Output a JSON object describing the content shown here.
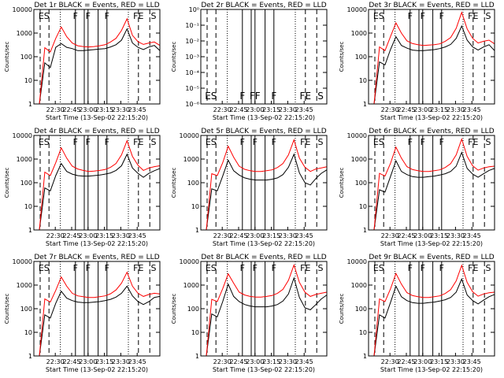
{
  "page": {
    "background": "#ffffff",
    "axis_color": "#000000"
  },
  "common": {
    "ylabel": "Counts/sec",
    "xlabel": "Start Time (13-Sep-02 22:15:20)",
    "xticks": [
      "22:30",
      "22:45",
      "23:00",
      "23:15",
      "23:30",
      "23:45"
    ],
    "event_color": "#000000",
    "lld_color": "#ff0000"
  },
  "chart_data": [
    {
      "type": "line",
      "title": "Det 1r BLACK = Events, RED = LLD",
      "ylim_log": [
        1,
        10000
      ],
      "yticks": [
        "1",
        "10",
        "100",
        "1000",
        "10000"
      ],
      "markers": [
        "ES",
        "F",
        "F",
        "F",
        "FE",
        "S"
      ],
      "empty": false,
      "series": [
        {
          "name": "Events",
          "values": [
            0,
            0,
            55,
            35,
            250,
            360,
            250,
            220,
            180,
            180,
            190,
            200,
            210,
            220,
            260,
            320,
            500,
            1500,
            380,
            250,
            200,
            260,
            300,
            180
          ]
        },
        {
          "name": "LLD",
          "values": [
            0,
            0,
            240,
            160,
            600,
            1800,
            700,
            380,
            290,
            270,
            260,
            270,
            290,
            320,
            420,
            600,
            1300,
            4000,
            800,
            430,
            330,
            380,
            420,
            300
          ]
        }
      ]
    },
    {
      "type": "line",
      "title": "Det 2r BLACK = Events, RED = LLD",
      "ylim_log": [
        1e-06,
        1
      ],
      "yticks": [
        "10⁻⁶",
        "10⁻⁵",
        "10⁻⁴",
        "10⁻³",
        "10⁻²",
        "10⁻¹",
        "10⁰"
      ],
      "markers": [
        "ES",
        "F",
        "FF",
        "F",
        "FE",
        "S"
      ],
      "empty": true,
      "series": []
    },
    {
      "type": "line",
      "title": "Det 3r BLACK = Events, RED = LLD",
      "ylim_log": [
        1,
        10000
      ],
      "yticks": [
        "1",
        "10",
        "100",
        "1000",
        "10000"
      ],
      "markers": [
        "ES",
        "F",
        "F",
        "F",
        "FE",
        "S"
      ],
      "empty": false,
      "series": [
        {
          "name": "Events",
          "values": [
            0,
            0,
            60,
            45,
            200,
            700,
            300,
            230,
            190,
            180,
            180,
            190,
            200,
            220,
            260,
            330,
            600,
            2000,
            500,
            260,
            190,
            260,
            320,
            180
          ]
        },
        {
          "name": "LLD",
          "values": [
            0,
            0,
            260,
            180,
            700,
            2700,
            1000,
            470,
            360,
            320,
            300,
            310,
            320,
            350,
            450,
            650,
            1600,
            7500,
            1500,
            600,
            380,
            450,
            500,
            350
          ]
        }
      ]
    },
    {
      "type": "line",
      "title": "Det 4r BLACK = Events, RED = LLD",
      "ylim_log": [
        1,
        10000
      ],
      "yticks": [
        "1",
        "10",
        "100",
        "1000",
        "10000"
      ],
      "markers": [
        "ES",
        "F",
        "F",
        "F",
        "FE",
        "S"
      ],
      "empty": false,
      "series": [
        {
          "name": "Events",
          "values": [
            0,
            0,
            60,
            45,
            200,
            650,
            300,
            230,
            200,
            190,
            190,
            200,
            210,
            230,
            260,
            330,
            520,
            1600,
            420,
            250,
            170,
            250,
            320,
            400
          ]
        },
        {
          "name": "LLD",
          "values": [
            0,
            0,
            280,
            200,
            700,
            3000,
            1100,
            500,
            380,
            330,
            300,
            310,
            330,
            360,
            450,
            650,
            1500,
            6000,
            1300,
            550,
            330,
            420,
            480,
            520
          ]
        }
      ]
    },
    {
      "type": "line",
      "title": "Det 5r BLACK = Events, RED = LLD",
      "ylim_log": [
        1,
        10000
      ],
      "yticks": [
        "1",
        "10",
        "100",
        "1000",
        "10000"
      ],
      "markers": [
        "ES",
        "F",
        "F",
        "F",
        "FE",
        "S"
      ],
      "empty": false,
      "series": [
        {
          "name": "Events",
          "values": [
            0,
            0,
            55,
            45,
            190,
            900,
            320,
            210,
            160,
            140,
            130,
            130,
            130,
            140,
            160,
            220,
            450,
            1600,
            260,
            100,
            80,
            150,
            250,
            350
          ]
        },
        {
          "name": "LLD",
          "values": [
            0,
            0,
            240,
            200,
            700,
            3500,
            1200,
            500,
            370,
            320,
            300,
            300,
            320,
            350,
            440,
            650,
            1500,
            6500,
            1100,
            450,
            300,
            380,
            420,
            470
          ]
        }
      ]
    },
    {
      "type": "line",
      "title": "Det 6r BLACK = Events, RED = LLD",
      "ylim_log": [
        1,
        10000
      ],
      "yticks": [
        "1",
        "10",
        "100",
        "1000",
        "10000"
      ],
      "markers": [
        "ES",
        "F",
        "F",
        "F",
        "FE",
        "S"
      ],
      "empty": false,
      "series": [
        {
          "name": "Events",
          "values": [
            0,
            0,
            50,
            40,
            180,
            850,
            300,
            220,
            180,
            170,
            170,
            180,
            190,
            210,
            240,
            300,
            500,
            1900,
            400,
            230,
            170,
            240,
            330,
            400
          ]
        },
        {
          "name": "LLD",
          "values": [
            0,
            0,
            250,
            190,
            650,
            3200,
            1100,
            480,
            360,
            320,
            300,
            300,
            320,
            350,
            440,
            640,
            1500,
            7000,
            1300,
            520,
            340,
            420,
            470,
            500
          ]
        }
      ]
    },
    {
      "type": "line",
      "title": "Det 7r BLACK = Events, RED = LLD",
      "ylim_log": [
        1,
        10000
      ],
      "yticks": [
        "1",
        "10",
        "100",
        "1000",
        "10000"
      ],
      "markers": [
        "ES",
        "F",
        "F",
        "F",
        "FE",
        "S"
      ],
      "empty": false,
      "series": [
        {
          "name": "Events",
          "values": [
            0,
            0,
            55,
            40,
            170,
            550,
            280,
            220,
            190,
            180,
            180,
            190,
            200,
            220,
            250,
            310,
            450,
            900,
            350,
            200,
            150,
            200,
            300,
            330
          ]
        },
        {
          "name": "LLD",
          "values": [
            0,
            0,
            260,
            190,
            600,
            2200,
            900,
            450,
            350,
            320,
            300,
            300,
            320,
            350,
            430,
            620,
            1200,
            3500,
            900,
            450,
            330,
            400,
            450,
            420
          ]
        }
      ]
    },
    {
      "type": "line",
      "title": "Det 8r BLACK = Events, RED = LLD",
      "ylim_log": [
        1,
        10000
      ],
      "yticks": [
        "1",
        "10",
        "100",
        "1000",
        "10000"
      ],
      "markers": [
        "ES",
        "F",
        "F",
        "F",
        "FE",
        "S"
      ],
      "empty": false,
      "series": [
        {
          "name": "Events",
          "values": [
            0,
            0,
            60,
            45,
            200,
            1100,
            330,
            200,
            150,
            130,
            120,
            120,
            120,
            130,
            150,
            210,
            420,
            2000,
            300,
            110,
            90,
            150,
            260,
            380
          ]
        },
        {
          "name": "LLD",
          "values": [
            0,
            0,
            250,
            200,
            700,
            3000,
            1200,
            500,
            380,
            330,
            310,
            310,
            330,
            360,
            450,
            660,
            1600,
            7000,
            1300,
            500,
            330,
            400,
            450,
            500
          ]
        }
      ]
    },
    {
      "type": "line",
      "title": "Det 9r BLACK = Events, RED = LLD",
      "ylim_log": [
        1,
        10000
      ],
      "yticks": [
        "1",
        "10",
        "100",
        "1000",
        "10000"
      ],
      "markers": [
        "ES",
        "F",
        "F",
        "F",
        "FE",
        "S"
      ],
      "empty": false,
      "series": [
        {
          "name": "Events",
          "values": [
            0,
            0,
            55,
            40,
            180,
            900,
            320,
            220,
            180,
            170,
            170,
            180,
            190,
            210,
            240,
            300,
            500,
            1800,
            380,
            220,
            160,
            230,
            320,
            400
          ]
        },
        {
          "name": "LLD",
          "values": [
            0,
            0,
            260,
            200,
            680,
            3100,
            1100,
            480,
            360,
            320,
            300,
            300,
            320,
            350,
            440,
            640,
            1500,
            6800,
            1300,
            520,
            340,
            420,
            470,
            500
          ]
        }
      ]
    }
  ]
}
